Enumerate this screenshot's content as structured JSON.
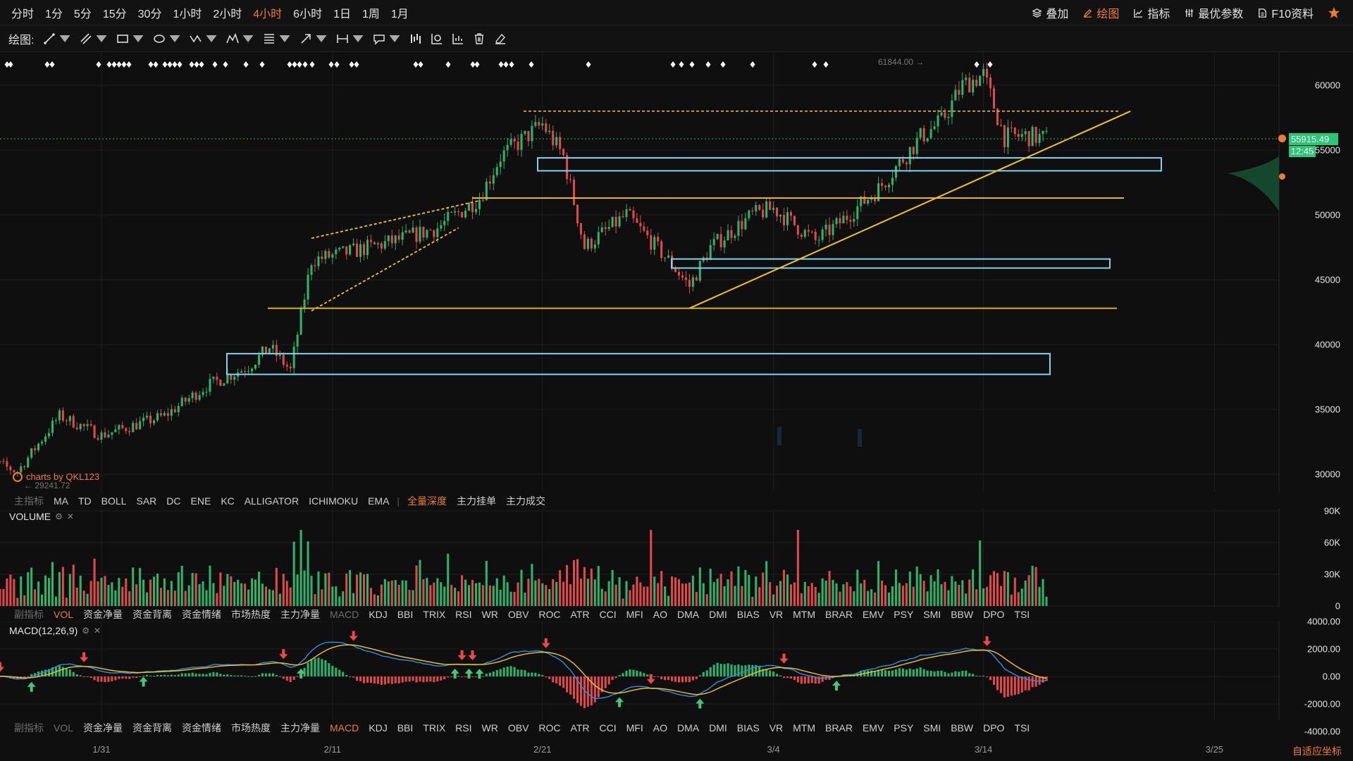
{
  "periods": [
    {
      "label": "分时"
    },
    {
      "label": "1分"
    },
    {
      "label": "5分"
    },
    {
      "label": "15分"
    },
    {
      "label": "30分"
    },
    {
      "label": "1小时"
    },
    {
      "label": "2小时"
    },
    {
      "label": "4小时",
      "active": true
    },
    {
      "label": "6小时"
    },
    {
      "label": "1日"
    },
    {
      "label": "1周"
    },
    {
      "label": "1月"
    }
  ],
  "top_right": {
    "overlay": "叠加",
    "draw": "绘图",
    "indicator": "指标",
    "best_params": "最优参数",
    "f10": "F10资料"
  },
  "drawbar": {
    "label": "绘图:",
    "tools": [
      "trend-line",
      "segment",
      "rectangle",
      "ellipse",
      "zigzag",
      "pattern",
      "fibonacci",
      "arrow",
      "measure",
      "annotation",
      "bar-pattern",
      "long-position",
      "short-position",
      "delete",
      "eraser"
    ]
  },
  "price_axis": {
    "labels": [
      "60000",
      "55000",
      "50000",
      "45000",
      "40000",
      "35000",
      "30000"
    ]
  },
  "current_price": {
    "value": "55915.49",
    "time": "12:45"
  },
  "annotations": {
    "high": "61844.00",
    "low": "29241.72",
    "watermark": "charts by QKL123"
  },
  "main_indicators": {
    "label": "主指标",
    "items": [
      "MA",
      "TD",
      "BOLL",
      "SAR",
      "DC",
      "ENE",
      "KC",
      "ALLIGATOR",
      "ICHIMOKU",
      "EMA"
    ],
    "extras": [
      "全量深度",
      "主力挂单",
      "主力成交"
    ]
  },
  "volume_pane": {
    "title": "VOLUME",
    "axis": [
      "90K",
      "60K",
      "30K",
      "0"
    ]
  },
  "sub_indicators": {
    "label": "副指标",
    "items": [
      "VOL",
      "资金净量",
      "资金背离",
      "资金情绪",
      "市场热度",
      "主力净量",
      "MACD",
      "KDJ",
      "BBI",
      "TRIX",
      "RSI",
      "WR",
      "OBV",
      "ROC",
      "ATR",
      "CCI",
      "MFI",
      "AO",
      "DMA",
      "DMI",
      "BIAS",
      "VR",
      "MTM",
      "BRAR",
      "EMV",
      "PSY",
      "SMI",
      "BBW",
      "DPO",
      "TSI"
    ],
    "active_vol_bar": "VOL",
    "active_macd_bar": "MACD"
  },
  "macd_pane": {
    "title": "MACD(12,26,9)",
    "axis": [
      "4000.00",
      "2000.00",
      "0.00",
      "-2000.00",
      "-4000.00"
    ]
  },
  "date_axis": [
    "1/31",
    "2/11",
    "2/21",
    "3/4",
    "3/14",
    "3/25"
  ],
  "adaptive_label": "自适应坐标",
  "colors": {
    "up": "#2db36a",
    "down": "#e0494b",
    "accent": "#f07c2e",
    "bg": "#0f0f10",
    "zone": "#7fd3f0",
    "trend": "#f5c518"
  },
  "chart_data": {
    "type": "candlestick",
    "interval": "4小时",
    "ylim": [
      28500,
      62500
    ],
    "close_series": [
      {
        "x": "1/25",
        "y": 31500
      },
      {
        "x": "1/27",
        "y": 30200
      },
      {
        "x": "1/29",
        "y": 34500
      },
      {
        "x": "1/31",
        "y": 33000
      },
      {
        "x": "2/3",
        "y": 34500
      },
      {
        "x": "2/5",
        "y": 36800
      },
      {
        "x": "2/7",
        "y": 38300
      },
      {
        "x": "2/8",
        "y": 39800
      },
      {
        "x": "2/9",
        "y": 38000
      },
      {
        "x": "2/10",
        "y": 46500
      },
      {
        "x": "2/12",
        "y": 47200
      },
      {
        "x": "2/14",
        "y": 48000
      },
      {
        "x": "2/16",
        "y": 49000
      },
      {
        "x": "2/18",
        "y": 51300
      },
      {
        "x": "2/19",
        "y": 54500
      },
      {
        "x": "2/21",
        "y": 57000
      },
      {
        "x": "2/22",
        "y": 54500
      },
      {
        "x": "2/23",
        "y": 47500
      },
      {
        "x": "2/25",
        "y": 50000
      },
      {
        "x": "2/27",
        "y": 46500
      },
      {
        "x": "2/28",
        "y": 44500
      },
      {
        "x": "3/1",
        "y": 47500
      },
      {
        "x": "3/3",
        "y": 50000
      },
      {
        "x": "3/4",
        "y": 50500
      },
      {
        "x": "3/6",
        "y": 48000
      },
      {
        "x": "3/7",
        "y": 49200
      },
      {
        "x": "3/9",
        "y": 52000
      },
      {
        "x": "3/11",
        "y": 56000
      },
      {
        "x": "3/12",
        "y": 57200
      },
      {
        "x": "3/13",
        "y": 60000
      },
      {
        "x": "3/14",
        "y": 60800
      },
      {
        "x": "3/15",
        "y": 56000
      },
      {
        "x": "3/16",
        "y": 56100
      },
      {
        "x": "3/17",
        "y": 55900
      }
    ],
    "levels": [
      58000,
      51300,
      42800
    ],
    "zones": [
      [
        53400,
        54400
      ],
      [
        45900,
        46600
      ],
      [
        37700,
        39300
      ]
    ],
    "trendline": [
      {
        "x": "2/28",
        "y": 42800
      },
      {
        "x": "3/21",
        "y": 58000
      }
    ],
    "wedge": {
      "upper": [
        {
          "x": "2/10",
          "y": 48200
        },
        {
          "x": "2/18",
          "y": 51100
        }
      ],
      "lower": [
        {
          "x": "2/10",
          "y": 42600
        },
        {
          "x": "2/17",
          "y": 49000
        }
      ]
    }
  }
}
